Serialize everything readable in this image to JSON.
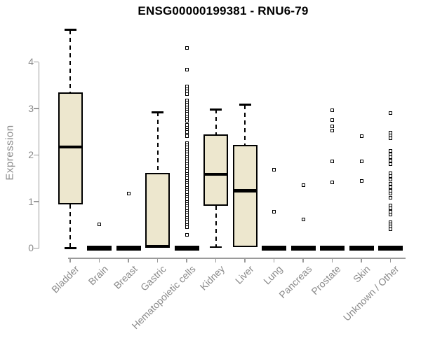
{
  "page": {
    "background": "#ffffff"
  },
  "chart_data": {
    "type": "boxplot",
    "title": "ENSG00000199381 - RNU6-79",
    "ylabel": "Expression",
    "xlabel": "",
    "ylim": [
      0,
      4.7
    ],
    "yticks": [
      0,
      1,
      2,
      3,
      4
    ],
    "grid": false,
    "legend_position": "none",
    "colors": {
      "box_fill": "#EDE7CE",
      "box_border": "#000000",
      "median": "#000000",
      "axis_line": "#9a9a9a",
      "axis_text": "#8a8a8a",
      "title_text": "#000000",
      "outlier": "#000000"
    },
    "categories": [
      "Bladder",
      "Brain",
      "Breast",
      "Gastric",
      "Hematopoietic cells",
      "Kidney",
      "Liver",
      "Lung",
      "Pancreas",
      "Prostate",
      "Skin",
      "Unknown / Other"
    ],
    "series": [
      {
        "label": "Bladder",
        "whisker_low": 0,
        "q1": 0.94,
        "median": 2.17,
        "q3": 3.35,
        "whisker_high": 4.69,
        "outliers": []
      },
      {
        "label": "Brain",
        "whisker_low": 0,
        "q1": 0,
        "median": 0,
        "q3": 0,
        "whisker_high": 0,
        "outliers": [
          0.51
        ]
      },
      {
        "label": "Breast",
        "whisker_low": 0,
        "q1": 0,
        "median": 0,
        "q3": 0,
        "whisker_high": 0,
        "outliers": [
          1.18
        ]
      },
      {
        "label": "Gastric",
        "whisker_low": 0,
        "q1": 0,
        "median": 0.04,
        "q3": 1.62,
        "whisker_high": 2.92,
        "outliers": []
      },
      {
        "label": "Hematopoietic cells",
        "whisker_low": 0,
        "q1": 0,
        "median": 0,
        "q3": 0,
        "whisker_high": 0,
        "outliers": [
          4.3,
          3.84,
          3.47,
          3.42,
          3.37,
          3.31,
          3.18,
          3.13,
          3.08,
          3.03,
          2.98,
          2.93,
          2.88,
          2.83,
          2.78,
          2.73,
          2.64,
          2.59,
          2.54,
          2.49,
          2.44,
          2.4,
          2.26,
          2.21,
          2.16,
          2.11,
          2.06,
          2.01,
          1.96,
          1.91,
          1.86,
          1.81,
          1.76,
          1.7,
          1.65,
          1.6,
          1.55,
          1.5,
          1.45,
          1.4,
          1.35,
          1.3,
          1.25,
          1.2,
          1.15,
          1.1,
          1.05,
          1.0,
          0.95,
          0.9,
          0.85,
          0.8,
          0.75,
          0.7,
          0.65,
          0.6,
          0.55,
          0.5,
          0.45,
          0.28
        ]
      },
      {
        "label": "Kidney",
        "whisker_low": 0.02,
        "q1": 0.91,
        "median": 1.59,
        "q3": 2.45,
        "whisker_high": 2.98,
        "outliers": []
      },
      {
        "label": "Liver",
        "whisker_low": 0.02,
        "q1": 0.02,
        "median": 1.23,
        "q3": 2.22,
        "whisker_high": 3.08,
        "outliers": []
      },
      {
        "label": "Lung",
        "whisker_low": 0,
        "q1": 0,
        "median": 0,
        "q3": 0,
        "whisker_high": 0,
        "outliers": [
          1.69,
          0.78
        ]
      },
      {
        "label": "Pancreas",
        "whisker_low": 0,
        "q1": 0,
        "median": 0,
        "q3": 0,
        "whisker_high": 0,
        "outliers": [
          1.35,
          0.62
        ]
      },
      {
        "label": "Prostate",
        "whisker_low": 0,
        "q1": 0,
        "median": 0,
        "q3": 0,
        "whisker_high": 0,
        "outliers": [
          2.96,
          2.75,
          2.62,
          2.53,
          1.86,
          1.41
        ]
      },
      {
        "label": "Skin",
        "whisker_low": 0,
        "q1": 0,
        "median": 0,
        "q3": 0,
        "whisker_high": 0,
        "outliers": [
          2.41,
          1.86,
          1.45
        ]
      },
      {
        "label": "Unknown / Other",
        "whisker_low": 0,
        "q1": 0,
        "median": 0,
        "q3": 0,
        "whisker_high": 0,
        "outliers": [
          2.9,
          2.48,
          2.42,
          2.36,
          2.09,
          2.02,
          1.96,
          1.88,
          1.81,
          1.61,
          1.55,
          1.47,
          1.39,
          1.31,
          1.23,
          1.18,
          1.09,
          0.91,
          0.85,
          0.78,
          0.72,
          0.56,
          0.51,
          0.47,
          0.4
        ]
      }
    ]
  }
}
